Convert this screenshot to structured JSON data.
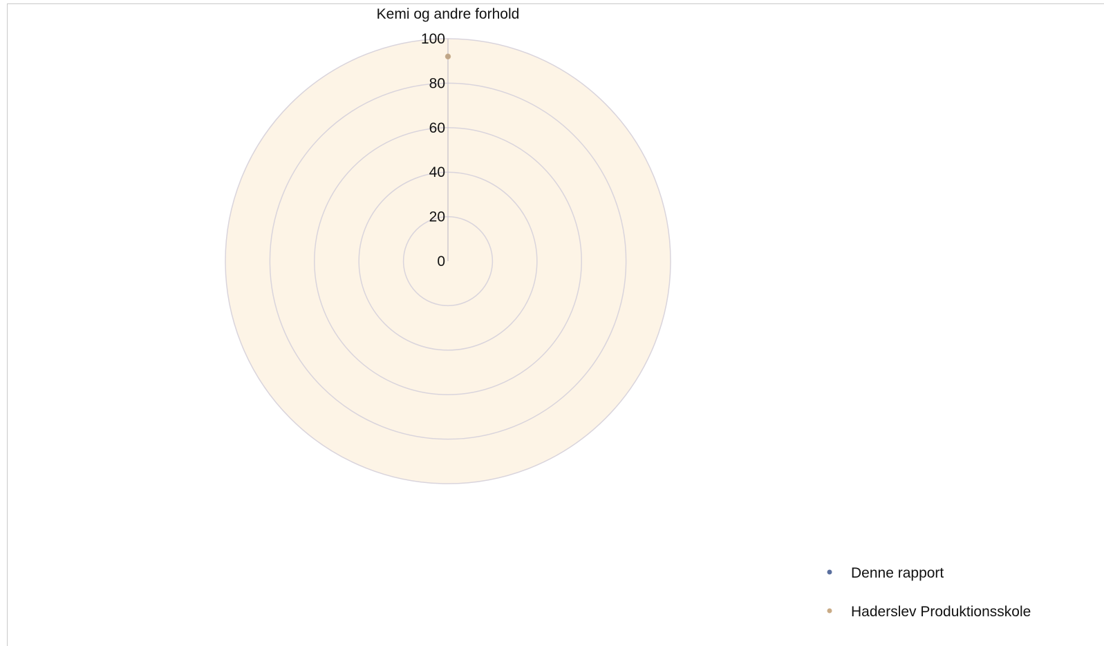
{
  "chart_data": {
    "type": "radar",
    "categories": [
      "Kemi og andre forhold"
    ],
    "rlim": [
      0,
      100
    ],
    "ticks": [
      0,
      20,
      40,
      60,
      80,
      100
    ],
    "grid": true,
    "plot_background": "#fdf4e6",
    "grid_color": "#d9d4dc",
    "series": [
      {
        "name": "Denne rapport",
        "values": [
          92
        ],
        "color": "#5a6f9e"
      },
      {
        "name": "Haderslev Produktionsskole",
        "values": [
          92
        ],
        "color": "#c9ab86"
      }
    ],
    "legend_position": "bottom-right"
  }
}
